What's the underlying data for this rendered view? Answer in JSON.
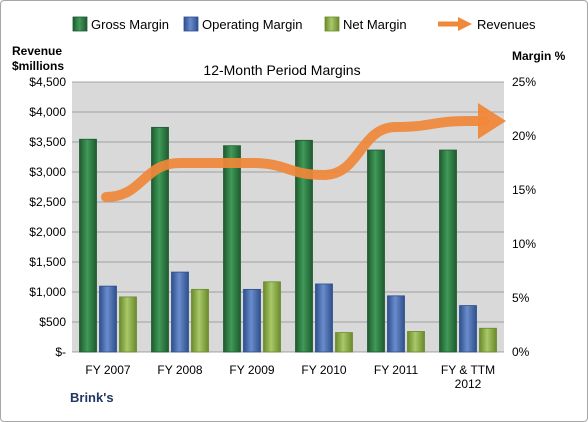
{
  "chart_data": {
    "type": "bar",
    "title": "12-Month Period Margins",
    "company": "Brink's",
    "left_axis_label_line1": "Revenue",
    "left_axis_label_line2": "$millions",
    "right_axis_label": "Margin %",
    "categories": [
      [
        "FY 2007"
      ],
      [
        "FY 2008"
      ],
      [
        "FY 2009"
      ],
      [
        "FY 2010"
      ],
      [
        "FY 2011"
      ],
      [
        "FY & TTM",
        "2012"
      ]
    ],
    "left_ticks": [
      "$-",
      "$500",
      "$1,000",
      "$1,500",
      "$2,000",
      "$2,500",
      "$3,000",
      "$3,500",
      "$4,000",
      "$4,500"
    ],
    "right_ticks": [
      "0%",
      "5%",
      "10%",
      "15%",
      "20%",
      "25%"
    ],
    "ylim_pct": [
      0,
      25
    ],
    "ylim_revenue": [
      0,
      4500
    ],
    "grid": true,
    "legend_position": "top",
    "series": [
      {
        "name": "Gross Margin",
        "values": [
          19.7,
          20.8,
          19.1,
          19.6,
          18.7,
          18.7
        ]
      },
      {
        "name": "Operating Margin",
        "values": [
          6.1,
          7.4,
          5.8,
          6.3,
          5.2,
          4.3
        ]
      },
      {
        "name": "Net Margin",
        "values": [
          5.1,
          5.8,
          6.5,
          1.8,
          1.9,
          2.2
        ]
      }
    ],
    "line_series": {
      "name": "Revenues",
      "values": [
        2750,
        3150,
        3150,
        2950,
        3750,
        3850
      ]
    },
    "colors": {
      "gross": "#2e7d45",
      "operating": "#4a6fb5",
      "net": "#8fb04a",
      "revenues": "#f0883a",
      "plot_bg": "#d9d9d9",
      "grid": "#8c8c8c"
    }
  }
}
